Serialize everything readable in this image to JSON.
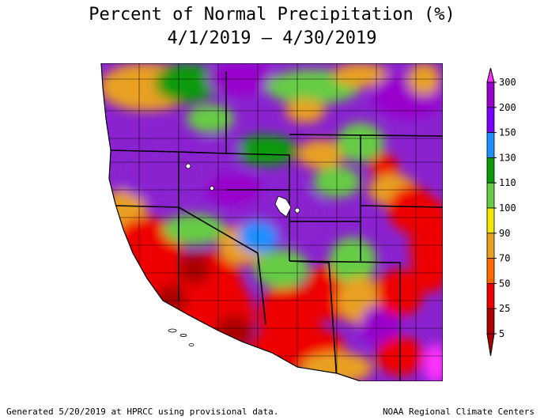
{
  "title": "Percent of Normal Precipitation (%)",
  "date_range": "4/1/2019 – 4/30/2019",
  "legend": {
    "labels": [
      "300",
      "200",
      "150",
      "130",
      "110",
      "100",
      "90",
      "70",
      "50",
      "25",
      "5"
    ],
    "colors": [
      "#ff33ff",
      "#9900cc",
      "#7a00ff",
      "#1e90ff",
      "#0a9a0a",
      "#66cc44",
      "#f2e600",
      "#e8a020",
      "#ff6a00",
      "#ee0000",
      "#aa0000"
    ]
  },
  "footer": {
    "left": "Generated 5/20/2019 at HPRCC using provisional data.",
    "right": "NOAA Regional Climate Centers"
  }
}
